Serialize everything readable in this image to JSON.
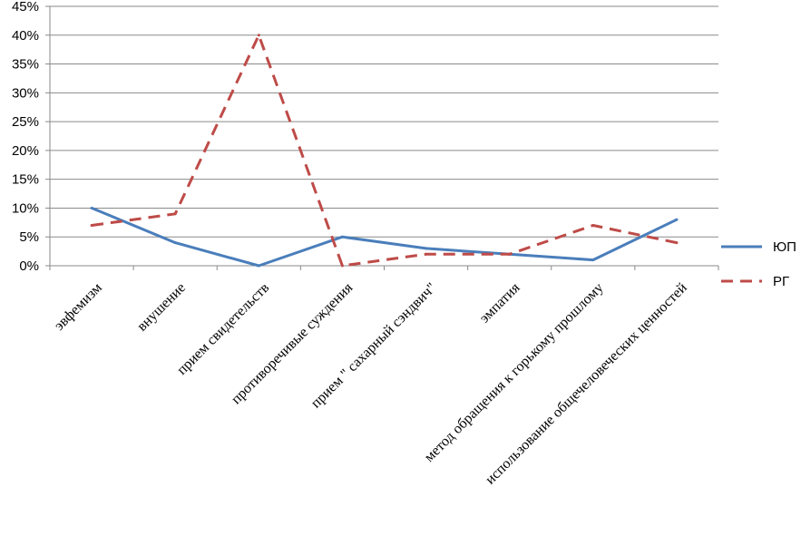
{
  "chart_data": {
    "type": "line",
    "categories": [
      "эвфемизм",
      "внушение",
      "прием свидетельств",
      "противоречивые суждения",
      "прием \" сахарный сэндвич\"",
      "эмпатия",
      "метод обращения к горькому прошлому",
      "использование общечеловеческих ценностей"
    ],
    "series": [
      {
        "name": "ЮП",
        "values": [
          10,
          4,
          0,
          5,
          3,
          2,
          1,
          8
        ],
        "color": "#4a7ebb",
        "style": "solid"
      },
      {
        "name": "РГ",
        "values": [
          7,
          9,
          40,
          0,
          2,
          2,
          7,
          4
        ],
        "color": "#be4b48",
        "style": "dashed"
      }
    ],
    "ylim": [
      0,
      45
    ],
    "yticks": [
      "0%",
      "5%",
      "10%",
      "15%",
      "20%",
      "25%",
      "30%",
      "35%",
      "40%",
      "45%"
    ],
    "grid": true,
    "legend_position": "right"
  }
}
